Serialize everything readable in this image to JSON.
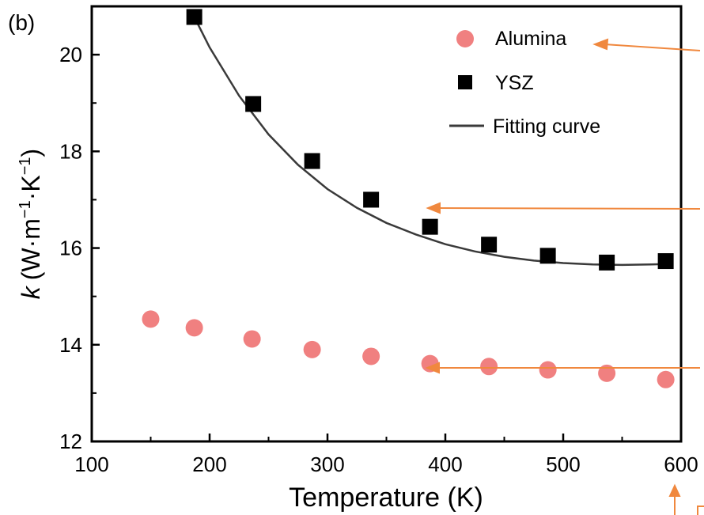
{
  "panel_label": "(b)",
  "chart_data": {
    "type": "scatter",
    "xlabel": "Temperature (K)",
    "ylabel": {
      "symbol": "k",
      "units": "(W·m",
      "exp1": "−1",
      "mid": "·K",
      "exp2": "−1",
      "close": ")"
    },
    "xlim": [
      100,
      600
    ],
    "ylim": [
      12,
      21
    ],
    "x_ticks": [
      100,
      200,
      300,
      400,
      500,
      600
    ],
    "y_ticks": [
      12,
      14,
      16,
      18,
      20
    ],
    "grid": false,
    "legend_position": "top-right",
    "legend": [
      "Alumina",
      "YSZ",
      "Fitting curve"
    ],
    "series": [
      {
        "name": "Alumina",
        "marker": "circle",
        "color": "#f08080",
        "x": [
          150,
          187,
          236,
          287,
          337,
          387,
          437,
          487,
          537,
          587
        ],
        "y": [
          14.53,
          14.35,
          14.12,
          13.9,
          13.76,
          13.61,
          13.55,
          13.48,
          13.41,
          13.28
        ]
      },
      {
        "name": "YSZ",
        "marker": "square",
        "color": "#000000",
        "x": [
          187,
          237,
          287,
          337,
          387,
          437,
          487,
          537,
          587
        ],
        "y": [
          20.78,
          18.98,
          17.8,
          17.0,
          16.44,
          16.07,
          15.84,
          15.7,
          15.73
        ]
      },
      {
        "name": "Fitting curve",
        "marker": "line",
        "color": "#3a3a3a",
        "x": [
          187,
          200,
          225,
          250,
          275,
          300,
          325,
          350,
          375,
          400,
          425,
          450,
          475,
          500,
          525,
          550,
          575,
          587
        ],
        "y": [
          20.78,
          20.15,
          19.15,
          18.35,
          17.72,
          17.22,
          16.83,
          16.52,
          16.28,
          16.08,
          15.93,
          15.82,
          15.74,
          15.69,
          15.66,
          15.65,
          15.66,
          15.67
        ]
      }
    ]
  },
  "colors": {
    "annotation_arrow": "#f0883e",
    "axis": "#000000"
  }
}
